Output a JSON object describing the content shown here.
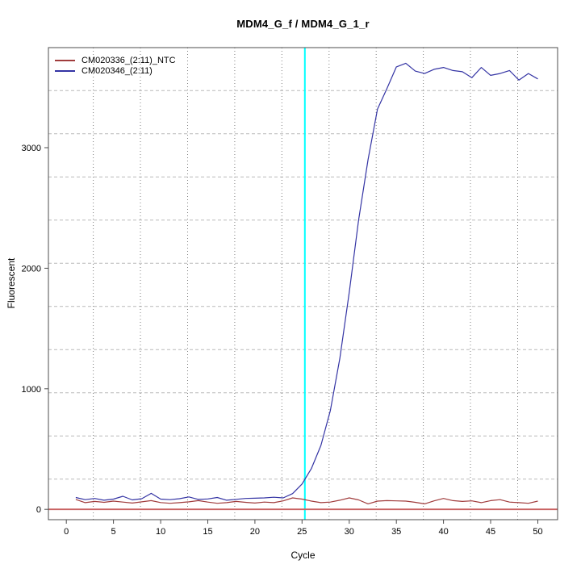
{
  "title": "MDM4_G_f / MDM4_G_1_r",
  "colors": {
    "sample_line": "#3434A4",
    "ntc_line": "#A03C3C",
    "zero_baseline": "#C96262",
    "threshold_vline": "#00FFFF",
    "grid_vertical": "#808080",
    "grid_horizontal": "#BABABA",
    "plot_border": "#4D4D4D",
    "text": "#000000"
  },
  "chart_data": {
    "type": "line",
    "title": "MDM4_G_f / MDM4_G_1_r",
    "xlabel": "Cycle",
    "ylabel": "Fluorescent",
    "xlim": [
      -1.9,
      52.1
    ],
    "ylim": [
      -86,
      3830
    ],
    "xticks": [
      0,
      5,
      10,
      15,
      20,
      25,
      30,
      35,
      40,
      45,
      50
    ],
    "yticks": [
      0,
      1000,
      2000,
      3000
    ],
    "grid": "on",
    "grid_x": [
      2.86,
      7.86,
      12.86,
      17.86,
      22.86,
      27.86,
      32.86,
      37.86,
      42.86,
      47.86
    ],
    "grid_y": [
      251,
      609,
      967,
      1325,
      1683,
      2041,
      2399,
      2757,
      3115,
      3473
    ],
    "threshold_cycle": 25.3,
    "zero_line_value": 0,
    "legend_position": "top-left",
    "x": [
      1,
      2,
      3,
      4,
      5,
      6,
      7,
      8,
      9,
      10,
      11,
      12,
      13,
      14,
      15,
      16,
      17,
      18,
      19,
      20,
      21,
      22,
      23,
      24,
      25,
      26,
      27,
      28,
      29,
      30,
      31,
      32,
      33,
      34,
      35,
      36,
      37,
      38,
      39,
      40,
      41,
      42,
      43,
      44,
      45,
      46,
      47,
      48,
      49,
      50
    ],
    "series": [
      {
        "name": "CM020336_(2:11)_NTC",
        "color": "#A03C3C",
        "values": [
          82,
          55,
          65,
          58,
          68,
          60,
          52,
          62,
          72,
          56,
          50,
          55,
          62,
          72,
          60,
          50,
          55,
          65,
          58,
          52,
          60,
          55,
          70,
          95,
          85,
          68,
          55,
          60,
          75,
          95,
          78,
          45,
          68,
          72,
          70,
          68,
          58,
          45,
          70,
          90,
          72,
          65,
          70,
          55,
          72,
          80,
          60,
          55,
          50,
          68
        ]
      },
      {
        "name": "CM020346_(2:11)",
        "color": "#3434A4",
        "values": [
          98,
          80,
          90,
          75,
          85,
          108,
          78,
          88,
          132,
          85,
          80,
          88,
          103,
          82,
          86,
          98,
          75,
          83,
          90,
          92,
          95,
          100,
          95,
          130,
          210,
          340,
          530,
          820,
          1250,
          1800,
          2400,
          2900,
          3320,
          3490,
          3670,
          3700,
          3635,
          3615,
          3650,
          3665,
          3640,
          3630,
          3580,
          3665,
          3600,
          3615,
          3640,
          3560,
          3615,
          3570
        ]
      }
    ]
  }
}
